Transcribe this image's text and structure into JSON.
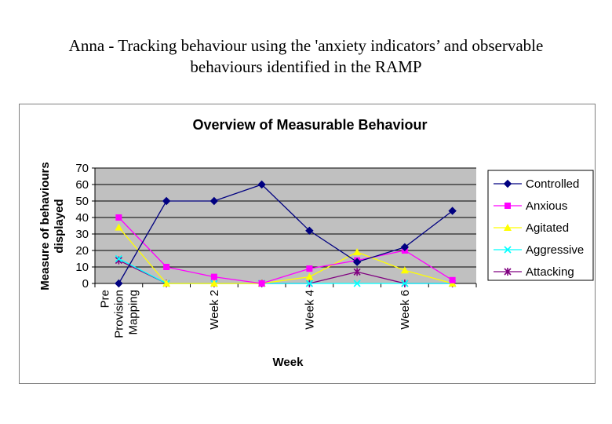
{
  "page": {
    "heading_line1": "Anna - Tracking behaviour using the 'anxiety indicators’ and observable",
    "heading_line2": "behaviours identified in the RAMP"
  },
  "chart_data": {
    "type": "line",
    "title": "Overview of Measurable Behaviour",
    "xlabel": "Week",
    "ylabel_lines": [
      "Measure of behaviours",
      "displayed"
    ],
    "ylim": [
      0,
      70
    ],
    "yticks": [
      0,
      10,
      20,
      30,
      40,
      50,
      60,
      70
    ],
    "grid": true,
    "plot_background": "#c0c0c0",
    "legend_position": "right",
    "x_points": 8,
    "x_tick_labels": [
      {
        "index": 0,
        "lines": [
          "Pre",
          "Provision",
          "Mapping"
        ]
      },
      {
        "index": 2,
        "lines": [
          "Week 2"
        ]
      },
      {
        "index": 4,
        "lines": [
          "Week 4"
        ]
      },
      {
        "index": 6,
        "lines": [
          "Week 6"
        ]
      }
    ],
    "series": [
      {
        "name": "Controlled",
        "color": "#000080",
        "marker": "diamond",
        "values": [
          0,
          50,
          50,
          60,
          32,
          13,
          22,
          44
        ]
      },
      {
        "name": "Anxious",
        "color": "#ff00ff",
        "marker": "square",
        "values": [
          40,
          10,
          4,
          0,
          9,
          14,
          20,
          2
        ]
      },
      {
        "name": "Agitated",
        "color": "#ffff00",
        "marker": "triangle",
        "values": [
          34,
          0,
          0,
          0,
          4,
          19,
          8,
          0
        ]
      },
      {
        "name": "Aggressive",
        "color": "#00ffff",
        "marker": "x",
        "values": [
          15,
          0,
          0,
          0,
          0,
          0,
          0,
          0
        ]
      },
      {
        "name": "Attacking",
        "color": "#800080",
        "marker": "star",
        "values": [
          14,
          0,
          0,
          0,
          0,
          7,
          0,
          0
        ]
      }
    ]
  }
}
